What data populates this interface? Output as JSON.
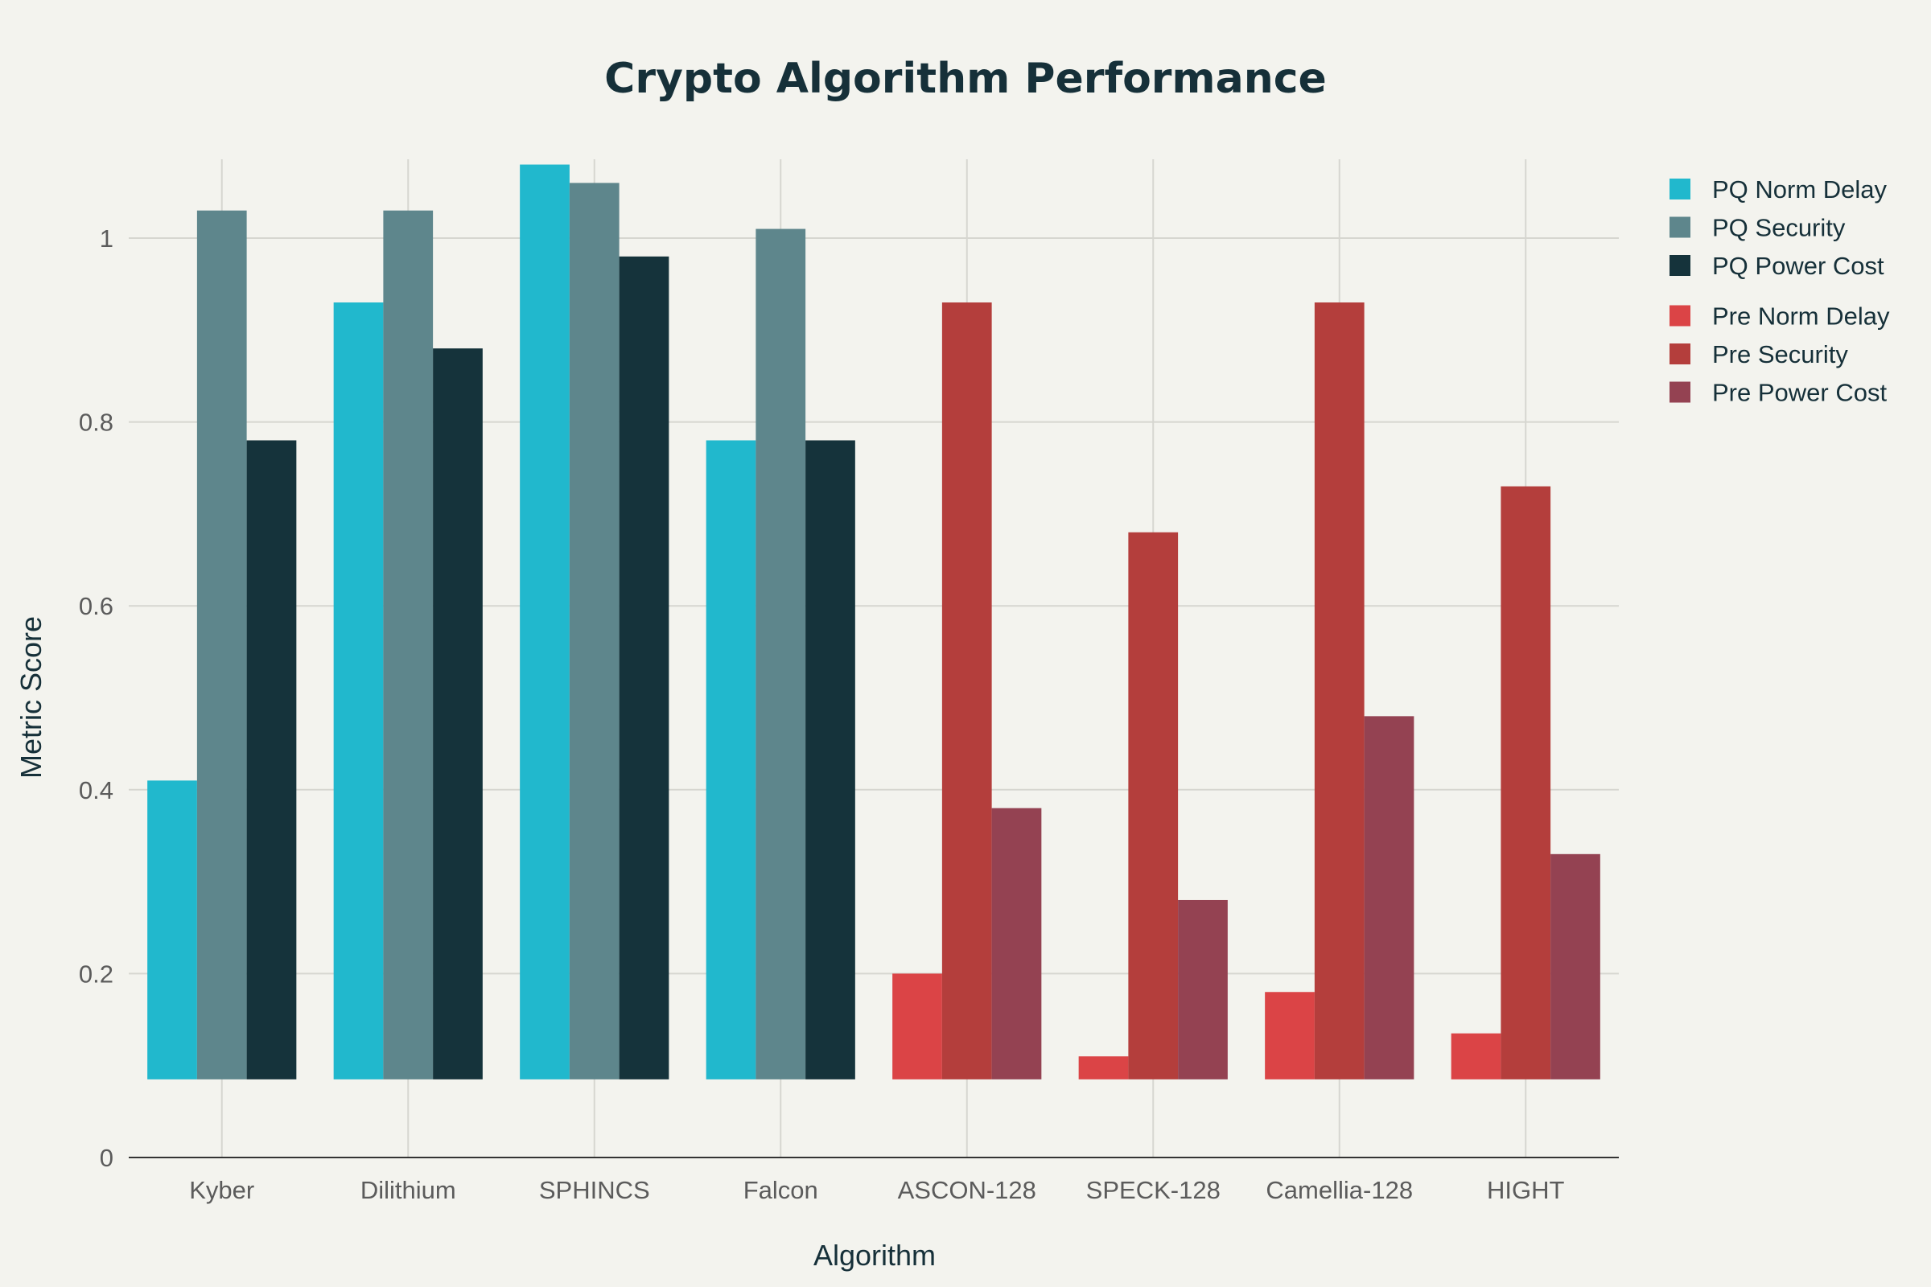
{
  "chart_data": {
    "type": "bar",
    "title": "Crypto Algorithm Performance",
    "xlabel": "Algorithm",
    "ylabel": "Metric Score",
    "ylim": [
      0,
      1.08
    ],
    "yticks": [
      0,
      0.2,
      0.4,
      0.6,
      0.8,
      1
    ],
    "ytick_labels": [
      "0",
      "0.2",
      "0.4",
      "0.6",
      "0.8",
      "1"
    ],
    "bar_base": 0.085,
    "grid": true,
    "legend_position": "top-right",
    "categories": [
      "Kyber",
      "Dilithium",
      "SPHINCS",
      "Falcon",
      "ASCON-128",
      "SPECK-128",
      "Camellia-128",
      "HIGHT"
    ],
    "series": [
      {
        "name": "PQ Norm Delay",
        "color": "#21b8cd",
        "values": [
          0.41,
          0.93,
          1.08,
          0.78,
          null,
          null,
          null,
          null
        ]
      },
      {
        "name": "PQ Security",
        "color": "#5e868c",
        "values": [
          1.03,
          1.03,
          1.06,
          1.01,
          null,
          null,
          null,
          null
        ]
      },
      {
        "name": "PQ Power Cost",
        "color": "#15333b",
        "values": [
          0.78,
          0.88,
          0.98,
          0.78,
          null,
          null,
          null,
          null
        ]
      },
      {
        "name": "Pre Norm Delay",
        "color": "#db4446",
        "values": [
          null,
          null,
          null,
          null,
          0.2,
          0.11,
          0.18,
          0.135
        ]
      },
      {
        "name": "Pre Security",
        "color": "#b43e3c",
        "values": [
          null,
          null,
          null,
          null,
          0.93,
          0.68,
          0.93,
          0.73
        ]
      },
      {
        "name": "Pre Power Cost",
        "color": "#944252",
        "values": [
          null,
          null,
          null,
          null,
          0.38,
          0.28,
          0.48,
          0.33
        ]
      }
    ]
  }
}
